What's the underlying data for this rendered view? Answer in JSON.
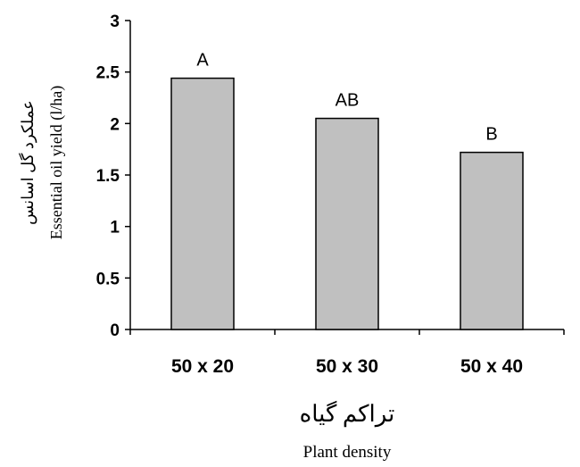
{
  "chart_data": {
    "type": "bar",
    "categories": [
      "50 x 20",
      "50 x 30",
      "50 x 40"
    ],
    "values": [
      2.44,
      2.05,
      1.72
    ],
    "data_labels": [
      "A",
      "AB",
      "B"
    ],
    "ylim": [
      0,
      3
    ],
    "yticks": [
      "0",
      "0.5",
      "1",
      "1.5",
      "2",
      "2.5",
      "3"
    ],
    "ylabel": "Essential oil yield (l/ha)",
    "ylabel_fa": "عملکرد گل اسانس",
    "xlabel": "Plant density",
    "xlabel_fa": "تراکم گیاه",
    "grid": false,
    "legend": "none",
    "colors": {
      "bar_fill": "#c0c0c0",
      "bar_stroke": "#000000",
      "axis": "#000000"
    }
  }
}
